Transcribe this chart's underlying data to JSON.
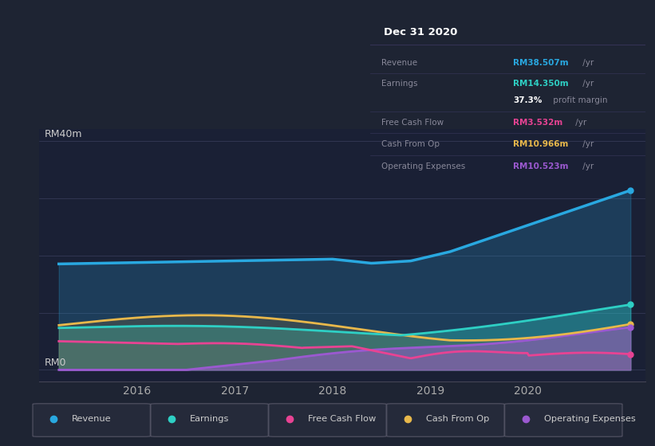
{
  "bg_color": "#1e2433",
  "chart_area_color": "#1a2035",
  "ylabel_top": "RM40m",
  "ylabel_bottom": "RM0",
  "x_ticks": [
    2016,
    2017,
    2018,
    2019,
    2020
  ],
  "x_min": 2015.0,
  "x_max": 2021.2,
  "y_min": -2,
  "y_max": 42,
  "colors": {
    "revenue": "#29a8e0",
    "earnings": "#2ecfc4",
    "free_cash_flow": "#e84393",
    "cash_from_op": "#e8b84b",
    "operating_expenses": "#9b59d0"
  },
  "info_box": {
    "title": "Dec 31 2020",
    "rows": [
      {
        "label": "Revenue",
        "value": "RM38.507m",
        "unit": " /yr",
        "color": "#29a8e0"
      },
      {
        "label": "Earnings",
        "value": "RM14.350m",
        "unit": " /yr",
        "color": "#2ecfc4"
      },
      {
        "label": "",
        "value": "37.3%",
        "unit": " profit margin",
        "color": "#ffffff"
      },
      {
        "label": "Free Cash Flow",
        "value": "RM3.532m",
        "unit": " /yr",
        "color": "#e84393"
      },
      {
        "label": "Cash From Op",
        "value": "RM10.966m",
        "unit": " /yr",
        "color": "#e8b84b"
      },
      {
        "label": "Operating Expenses",
        "value": "RM10.523m",
        "unit": " /yr",
        "color": "#9b59d0"
      }
    ]
  },
  "legend": [
    {
      "label": "Revenue",
      "color": "#29a8e0"
    },
    {
      "label": "Earnings",
      "color": "#2ecfc4"
    },
    {
      "label": "Free Cash Flow",
      "color": "#e84393"
    },
    {
      "label": "Cash From Op",
      "color": "#e8b84b"
    },
    {
      "label": "Operating Expenses",
      "color": "#9b59d0"
    }
  ]
}
